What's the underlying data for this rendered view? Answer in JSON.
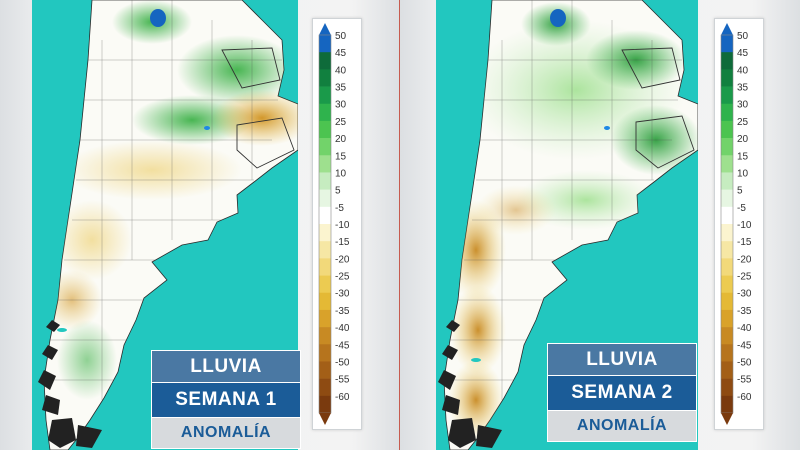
{
  "panels": [
    {
      "title": "LLUVIA",
      "week": "SEMANA 1",
      "kind": "ANOMALÍA"
    },
    {
      "title": "LLUVIA",
      "week": "SEMANA 2",
      "kind": "ANOMALÍA"
    }
  ],
  "legend": {
    "labels": [
      "50",
      "45",
      "40",
      "35",
      "30",
      "25",
      "20",
      "15",
      "10",
      "5",
      "-5",
      "-10",
      "-15",
      "-20",
      "-25",
      "-30",
      "-35",
      "-40",
      "-45",
      "-50",
      "-55",
      "-60"
    ],
    "colors": [
      "#1565c0",
      "#0e6b3a",
      "#11803f",
      "#1a9a4a",
      "#2fb34d",
      "#4cc450",
      "#72d36a",
      "#9ee08e",
      "#c6ecc0",
      "#e6f6e2",
      "#ffffff",
      "#fbf4cf",
      "#f6e7a4",
      "#f2d97a",
      "#eccb51",
      "#e4b935",
      "#d9a22a",
      "#c88a23",
      "#b6741d",
      "#a35f17",
      "#8e4b12",
      "#7a3a0e"
    ]
  },
  "colors": {
    "ocean": "#22c7bf",
    "land_neutral": "#fbfbf6",
    "wet": "#3fb24a",
    "dry": "#d8a42a",
    "title_bar": "#4a78a3",
    "week_bar": "#1b5c98",
    "label_bar": "#d7dadd"
  }
}
